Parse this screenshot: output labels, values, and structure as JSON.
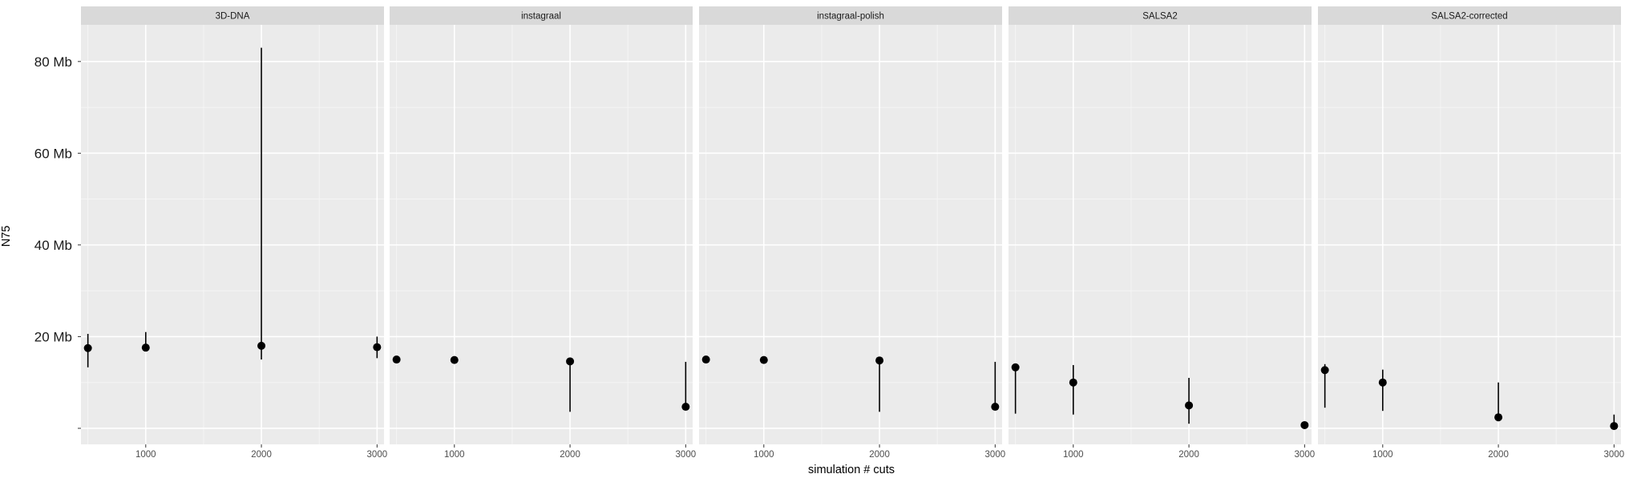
{
  "chart_data": {
    "type": "scatter",
    "subtype": "faceted point with error bars",
    "xlabel": "simulation # cuts",
    "ylabel": "N75",
    "xlim": [
      440,
      3060
    ],
    "ylim": [
      -3.5,
      88
    ],
    "x_ticks": [
      1000,
      2000,
      3000
    ],
    "x_tick_labels": [
      "1000",
      "2000",
      "3000"
    ],
    "y_ticks": [
      0,
      20,
      40,
      60,
      80
    ],
    "y_tick_labels": [
      "",
      "20 Mb",
      "40 Mb",
      "60 Mb",
      "80 Mb"
    ],
    "grid": true,
    "panel_background": "#ebebeb",
    "strip_background": "#d9d9d9",
    "point_color": "#000000",
    "facets": [
      {
        "label": "3D-DNA",
        "points": [
          {
            "x": 500,
            "y": 17.5,
            "ymin": 13.3,
            "ymax": 20.6
          },
          {
            "x": 1000,
            "y": 17.6,
            "ymin": 17.6,
            "ymax": 21.0
          },
          {
            "x": 2000,
            "y": 18.0,
            "ymin": 15.0,
            "ymax": 83.0
          },
          {
            "x": 3000,
            "y": 17.7,
            "ymin": 15.3,
            "ymax": 20.0
          }
        ]
      },
      {
        "label": "instagraal",
        "points": [
          {
            "x": 500,
            "y": 15.0,
            "ymin": 15.0,
            "ymax": 15.0
          },
          {
            "x": 1000,
            "y": 14.9,
            "ymin": 14.9,
            "ymax": 14.9
          },
          {
            "x": 2000,
            "y": 14.6,
            "ymin": 3.6,
            "ymax": 14.6
          },
          {
            "x": 3000,
            "y": 4.7,
            "ymin": 4.7,
            "ymax": 14.5
          }
        ]
      },
      {
        "label": "instagraal-polish",
        "points": [
          {
            "x": 500,
            "y": 15.0,
            "ymin": 15.0,
            "ymax": 15.0
          },
          {
            "x": 1000,
            "y": 14.9,
            "ymin": 14.9,
            "ymax": 14.9
          },
          {
            "x": 2000,
            "y": 14.8,
            "ymin": 3.6,
            "ymax": 14.8
          },
          {
            "x": 3000,
            "y": 4.7,
            "ymin": 4.7,
            "ymax": 14.5
          }
        ]
      },
      {
        "label": "SALSA2",
        "points": [
          {
            "x": 500,
            "y": 13.3,
            "ymin": 3.2,
            "ymax": 13.3
          },
          {
            "x": 1000,
            "y": 10.0,
            "ymin": 3.0,
            "ymax": 13.8
          },
          {
            "x": 2000,
            "y": 5.0,
            "ymin": 1.0,
            "ymax": 11.0
          },
          {
            "x": 3000,
            "y": 0.7,
            "ymin": 0.7,
            "ymax": 0.7
          }
        ]
      },
      {
        "label": "SALSA2-corrected",
        "points": [
          {
            "x": 500,
            "y": 12.7,
            "ymin": 4.5,
            "ymax": 14.0
          },
          {
            "x": 1000,
            "y": 10.0,
            "ymin": 3.8,
            "ymax": 12.8
          },
          {
            "x": 2000,
            "y": 2.4,
            "ymin": 2.4,
            "ymax": 10.0
          },
          {
            "x": 3000,
            "y": 0.5,
            "ymin": 0.5,
            "ymax": 3.0
          }
        ]
      }
    ]
  }
}
